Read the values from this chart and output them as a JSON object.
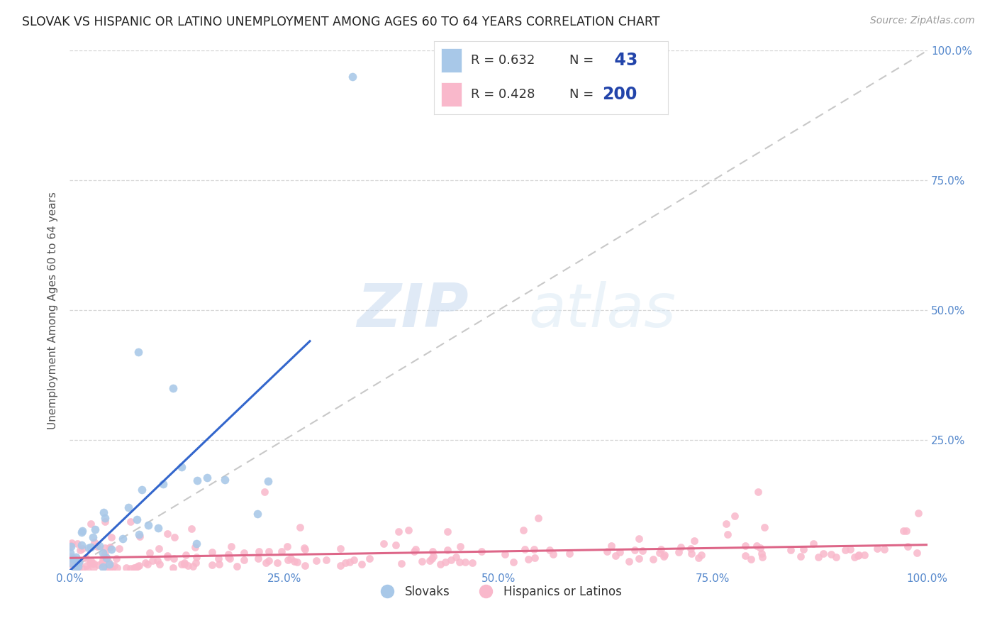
{
  "title": "SLOVAK VS HISPANIC OR LATINO UNEMPLOYMENT AMONG AGES 60 TO 64 YEARS CORRELATION CHART",
  "source": "Source: ZipAtlas.com",
  "ylabel": "Unemployment Among Ages 60 to 64 years",
  "xlim": [
    0,
    1.0
  ],
  "ylim": [
    0,
    1.0
  ],
  "xtick_vals": [
    0.0,
    0.25,
    0.5,
    0.75,
    1.0
  ],
  "xtick_labels": [
    "0.0%",
    "25.0%",
    "50.0%",
    "75.0%",
    "100.0%"
  ],
  "ytick_vals": [
    0.25,
    0.5,
    0.75,
    1.0
  ],
  "ytick_labels": [
    "25.0%",
    "50.0%",
    "75.0%",
    "100.0%"
  ],
  "slovak_color": "#a8c8e8",
  "hispanic_color": "#f9b8cb",
  "slovak_line_color": "#3366cc",
  "hispanic_line_color": "#dd6688",
  "legend_R_slovak": "0.632",
  "legend_N_slovak": "43",
  "legend_R_hispanic": "0.428",
  "legend_N_hispanic": "200",
  "legend_label_slovak": "Slovaks",
  "legend_label_hispanic": "Hispanics or Latinos",
  "watermark_zip": "ZIP",
  "watermark_atlas": "atlas",
  "background_color": "#ffffff",
  "grid_color": "#cccccc",
  "title_color": "#222222",
  "axis_label_color": "#555555",
  "tick_label_color": "#5588cc",
  "legend_N_color": "#2244aa"
}
